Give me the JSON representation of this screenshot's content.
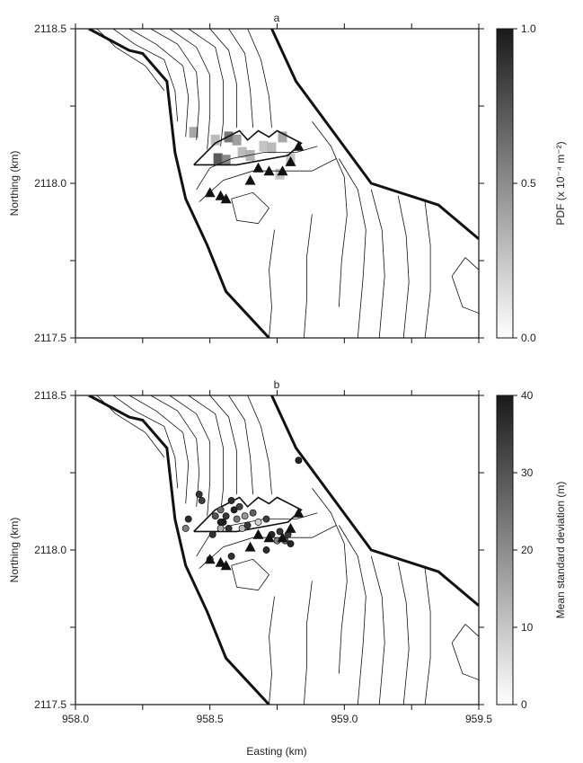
{
  "chart_data": [
    {
      "type": "heatmap",
      "title": "a",
      "xlabel": "",
      "ylabel": "Northing (km)",
      "xlim": [
        958.0,
        959.5
      ],
      "ylim": [
        2117.5,
        2118.5
      ],
      "yticks": [
        "2117.5",
        "2118.0",
        "2118.5"
      ],
      "colorbar": {
        "label": "PDF (x 10⁻⁴ m⁻²)",
        "min": 0.0,
        "max": 1.0,
        "ticks": [
          "0.0",
          "0.5",
          "1.0"
        ]
      },
      "cells": [
        {
          "x": 958.44,
          "y": 2118.165,
          "v": 0.45
        },
        {
          "x": 958.52,
          "y": 2118.14,
          "v": 0.35
        },
        {
          "x": 958.57,
          "y": 2118.15,
          "v": 0.7
        },
        {
          "x": 958.6,
          "y": 2118.14,
          "v": 0.5
        },
        {
          "x": 958.62,
          "y": 2118.1,
          "v": 0.35
        },
        {
          "x": 958.53,
          "y": 2118.08,
          "v": 0.85
        },
        {
          "x": 958.56,
          "y": 2118.075,
          "v": 0.6
        },
        {
          "x": 958.65,
          "y": 2118.09,
          "v": 0.4
        },
        {
          "x": 958.7,
          "y": 2118.12,
          "v": 0.3
        },
        {
          "x": 958.73,
          "y": 2118.115,
          "v": 0.35
        },
        {
          "x": 958.77,
          "y": 2118.15,
          "v": 0.45
        },
        {
          "x": 958.8,
          "y": 2118.08,
          "v": 0.3
        },
        {
          "x": 958.76,
          "y": 2118.03,
          "v": 0.3
        }
      ]
    },
    {
      "type": "scatter",
      "title": "b",
      "xlabel": "Easting (km)",
      "ylabel": "Northing (km)",
      "xlim": [
        958.0,
        959.5
      ],
      "ylim": [
        2117.5,
        2118.5
      ],
      "xticks": [
        "958.0",
        "958.5",
        "959.0",
        "959.5"
      ],
      "yticks": [
        "2117.5",
        "2118.0",
        "2118.5"
      ],
      "colorbar": {
        "label": "Mean standard deviation (m)",
        "min": 0,
        "max": 40,
        "ticks": [
          "0",
          "10",
          "20",
          "30",
          "40"
        ]
      },
      "points": [
        {
          "x": 958.83,
          "y": 2118.29,
          "v": 38
        },
        {
          "x": 958.46,
          "y": 2118.18,
          "v": 36
        },
        {
          "x": 958.47,
          "y": 2118.16,
          "v": 34
        },
        {
          "x": 958.42,
          "y": 2118.1,
          "v": 37
        },
        {
          "x": 958.41,
          "y": 2118.07,
          "v": 22
        },
        {
          "x": 958.52,
          "y": 2118.11,
          "v": 30
        },
        {
          "x": 958.54,
          "y": 2118.13,
          "v": 26
        },
        {
          "x": 958.55,
          "y": 2118.09,
          "v": 38
        },
        {
          "x": 958.56,
          "y": 2118.11,
          "v": 35
        },
        {
          "x": 958.58,
          "y": 2118.16,
          "v": 37
        },
        {
          "x": 958.59,
          "y": 2118.13,
          "v": 39
        },
        {
          "x": 958.6,
          "y": 2118.1,
          "v": 24
        },
        {
          "x": 958.61,
          "y": 2118.14,
          "v": 33
        },
        {
          "x": 958.62,
          "y": 2118.07,
          "v": 12
        },
        {
          "x": 958.63,
          "y": 2118.11,
          "v": 18
        },
        {
          "x": 958.57,
          "y": 2118.07,
          "v": 36
        },
        {
          "x": 958.54,
          "y": 2118.07,
          "v": 14
        },
        {
          "x": 958.51,
          "y": 2118.05,
          "v": 36
        },
        {
          "x": 958.66,
          "y": 2118.12,
          "v": 28
        },
        {
          "x": 958.68,
          "y": 2118.09,
          "v": 8
        },
        {
          "x": 958.71,
          "y": 2118.1,
          "v": 34
        },
        {
          "x": 958.73,
          "y": 2118.05,
          "v": 38
        },
        {
          "x": 958.75,
          "y": 2118.03,
          "v": 22
        },
        {
          "x": 958.76,
          "y": 2118.06,
          "v": 36
        },
        {
          "x": 958.78,
          "y": 2118.03,
          "v": 26
        },
        {
          "x": 958.79,
          "y": 2118.05,
          "v": 35
        },
        {
          "x": 958.8,
          "y": 2118.02,
          "v": 38
        },
        {
          "x": 958.71,
          "y": 2118.0,
          "v": 37
        },
        {
          "x": 958.58,
          "y": 2117.98,
          "v": 36
        },
        {
          "x": 958.5,
          "y": 2117.97,
          "v": 14
        },
        {
          "x": 958.54,
          "y": 2118.09,
          "v": 39
        },
        {
          "x": 958.64,
          "y": 2118.08,
          "v": 35
        }
      ]
    }
  ],
  "annotations": {
    "stations": [
      {
        "x": 958.83,
        "y": 2118.12
      },
      {
        "x": 958.8,
        "y": 2118.07
      },
      {
        "x": 958.77,
        "y": 2118.04
      },
      {
        "x": 958.72,
        "y": 2118.04
      },
      {
        "x": 958.68,
        "y": 2118.05
      },
      {
        "x": 958.65,
        "y": 2118.01
      },
      {
        "x": 958.5,
        "y": 2117.97
      },
      {
        "x": 958.54,
        "y": 2117.96
      },
      {
        "x": 958.56,
        "y": 2117.95
      }
    ],
    "upper_boundary": [
      {
        "x": 958.05,
        "y": 2118.5
      },
      {
        "x": 958.2,
        "y": 2118.43
      },
      {
        "x": 958.25,
        "y": 2118.42
      },
      {
        "x": 958.34,
        "y": 2118.33
      },
      {
        "x": 958.37,
        "y": 2118.1
      },
      {
        "x": 958.41,
        "y": 2117.95
      },
      {
        "x": 958.49,
        "y": 2117.8
      },
      {
        "x": 958.56,
        "y": 2117.65
      },
      {
        "x": 958.72,
        "y": 2117.5
      }
    ],
    "right_boundary": [
      {
        "x": 958.73,
        "y": 2118.5
      },
      {
        "x": 958.82,
        "y": 2118.33
      },
      {
        "x": 959.1,
        "y": 2118.0
      },
      {
        "x": 959.35,
        "y": 2117.93
      },
      {
        "x": 959.5,
        "y": 2117.82
      }
    ],
    "vent_outline": [
      {
        "x": 958.44,
        "y": 2118.06
      },
      {
        "x": 958.52,
        "y": 2118.13
      },
      {
        "x": 958.61,
        "y": 2118.17
      },
      {
        "x": 958.64,
        "y": 2118.14
      },
      {
        "x": 958.68,
        "y": 2118.17
      },
      {
        "x": 958.72,
        "y": 2118.15
      },
      {
        "x": 958.75,
        "y": 2118.17
      },
      {
        "x": 958.84,
        "y": 2118.13
      },
      {
        "x": 958.79,
        "y": 2118.09
      },
      {
        "x": 958.6,
        "y": 2118.06
      },
      {
        "x": 958.44,
        "y": 2118.06
      }
    ],
    "contours": [
      [
        [
          958.08,
          2118.5
        ],
        [
          958.15,
          2118.44
        ],
        [
          958.26,
          2118.38
        ],
        [
          958.33,
          2118.3
        ]
      ],
      [
        [
          958.14,
          2118.5
        ],
        [
          958.22,
          2118.45
        ],
        [
          958.33,
          2118.4
        ],
        [
          958.37,
          2118.3
        ],
        [
          958.38,
          2118.2
        ]
      ],
      [
        [
          958.2,
          2118.5
        ],
        [
          958.3,
          2118.45
        ],
        [
          958.4,
          2118.38
        ],
        [
          958.42,
          2118.28
        ],
        [
          958.41,
          2118.15
        ]
      ],
      [
        [
          958.28,
          2118.5
        ],
        [
          958.38,
          2118.45
        ],
        [
          958.45,
          2118.36
        ],
        [
          958.46,
          2118.25
        ],
        [
          958.45,
          2118.14
        ]
      ],
      [
        [
          958.35,
          2118.5
        ],
        [
          958.45,
          2118.44
        ],
        [
          958.5,
          2118.35
        ],
        [
          958.5,
          2118.22
        ],
        [
          958.49,
          2118.11
        ]
      ],
      [
        [
          958.42,
          2118.5
        ],
        [
          958.52,
          2118.44
        ],
        [
          958.55,
          2118.33
        ],
        [
          958.55,
          2118.2
        ],
        [
          958.54,
          2118.12
        ]
      ],
      [
        [
          958.5,
          2118.5
        ],
        [
          958.57,
          2118.43
        ],
        [
          958.6,
          2118.32
        ],
        [
          958.6,
          2118.18
        ]
      ],
      [
        [
          958.57,
          2118.5
        ],
        [
          958.63,
          2118.42
        ],
        [
          958.65,
          2118.3
        ],
        [
          958.66,
          2118.18
        ]
      ],
      [
        [
          958.64,
          2118.5
        ],
        [
          958.69,
          2118.4
        ],
        [
          958.72,
          2118.28
        ],
        [
          958.73,
          2118.18
        ]
      ],
      [
        [
          958.45,
          2117.98
        ],
        [
          958.5,
          2118.05
        ],
        [
          958.58,
          2118.08
        ],
        [
          958.7,
          2118.1
        ],
        [
          958.82,
          2118.1
        ],
        [
          958.9,
          2118.12
        ]
      ],
      [
        [
          958.46,
          2117.94
        ],
        [
          958.55,
          2118.01
        ],
        [
          958.66,
          2118.04
        ],
        [
          958.78,
          2118.04
        ],
        [
          958.88,
          2118.04
        ],
        [
          958.97,
          2118.08
        ]
      ],
      [
        [
          958.88,
          2118.2
        ],
        [
          958.95,
          2118.12
        ],
        [
          959.0,
          2118.02
        ],
        [
          959.01,
          2117.9
        ],
        [
          958.99,
          2117.75
        ],
        [
          958.98,
          2117.6
        ]
      ],
      [
        [
          958.98,
          2118.08
        ],
        [
          959.05,
          2117.98
        ],
        [
          959.08,
          2117.85
        ],
        [
          959.07,
          2117.7
        ],
        [
          959.05,
          2117.5
        ]
      ],
      [
        [
          959.1,
          2117.98
        ],
        [
          959.14,
          2117.85
        ],
        [
          959.15,
          2117.7
        ],
        [
          959.13,
          2117.5
        ]
      ],
      [
        [
          959.2,
          2117.96
        ],
        [
          959.23,
          2117.83
        ],
        [
          959.24,
          2117.68
        ],
        [
          959.22,
          2117.5
        ]
      ],
      [
        [
          959.3,
          2117.94
        ],
        [
          959.32,
          2117.8
        ],
        [
          959.32,
          2117.65
        ],
        [
          959.3,
          2117.5
        ]
      ],
      [
        [
          958.72,
          2117.5
        ],
        [
          958.73,
          2117.6
        ],
        [
          958.72,
          2117.72
        ],
        [
          958.74,
          2117.85
        ]
      ],
      [
        [
          958.85,
          2117.5
        ],
        [
          958.86,
          2117.62
        ],
        [
          958.86,
          2117.76
        ],
        [
          958.88,
          2117.9
        ]
      ]
    ],
    "closed_contours": [
      [
        [
          958.58,
          2117.95
        ],
        [
          958.66,
          2117.97
        ],
        [
          958.72,
          2117.92
        ],
        [
          958.68,
          2117.87
        ],
        [
          958.6,
          2117.88
        ],
        [
          958.58,
          2117.95
        ]
      ],
      [
        [
          959.4,
          2117.7
        ],
        [
          959.45,
          2117.76
        ],
        [
          959.5,
          2117.72
        ],
        [
          959.5,
          2117.58
        ],
        [
          959.44,
          2117.6
        ],
        [
          959.4,
          2117.7
        ]
      ]
    ]
  }
}
